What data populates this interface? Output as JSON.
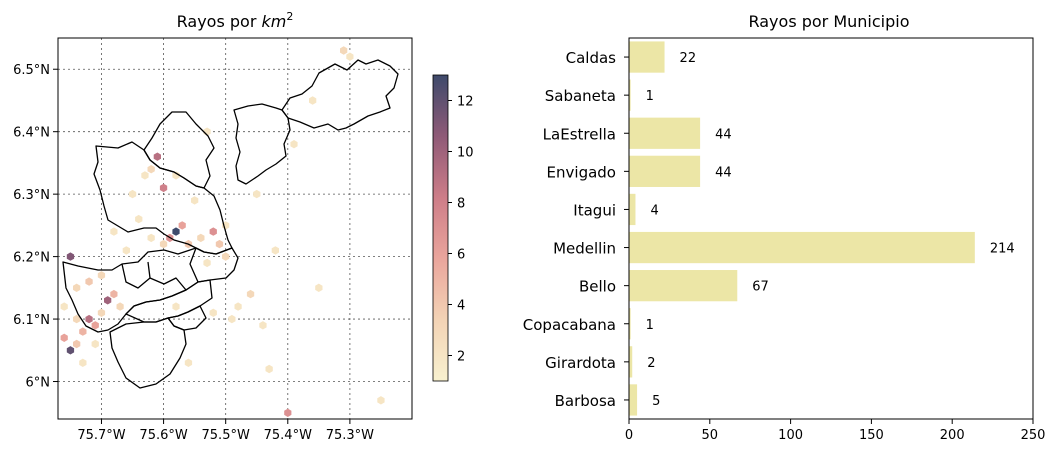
{
  "colors": {
    "bar": "#ece6a6",
    "cmap": [
      "#f8f1cf",
      "#f3d3b5",
      "#eaa59c",
      "#cd7d88",
      "#8f5a77",
      "#3e4a6b"
    ],
    "grid": "#555555",
    "border": "#000000"
  },
  "chart_data": [
    {
      "type": "heatmap",
      "title": "Rayos por km²",
      "title_prefix": "Rayos por ",
      "title_var": "km",
      "title_sup": "2",
      "x_ticks": [
        "75.7°W",
        "75.6°W",
        "75.5°W",
        "75.4°W",
        "75.3°W"
      ],
      "y_ticks": [
        "6.5°N",
        "6.4°N",
        "6.3°N",
        "6.2°N",
        "6.1°N",
        "6°N"
      ],
      "xlim": [
        -75.77,
        -75.2
      ],
      "ylim": [
        5.94,
        6.55
      ],
      "grid": true,
      "colorbar": {
        "ticks": [
          "2",
          "4",
          "6",
          "8",
          "10",
          "12"
        ],
        "range": [
          1,
          13
        ]
      },
      "cells": [
        {
          "lon": -75.76,
          "lat": 6.07,
          "v": 6
        },
        {
          "lon": -75.75,
          "lat": 6.05,
          "v": 12
        },
        {
          "lon": -75.74,
          "lat": 6.06,
          "v": 4
        },
        {
          "lon": -75.73,
          "lat": 6.08,
          "v": 5
        },
        {
          "lon": -75.72,
          "lat": 6.1,
          "v": 9
        },
        {
          "lon": -75.71,
          "lat": 6.09,
          "v": 6
        },
        {
          "lon": -75.7,
          "lat": 6.11,
          "v": 3
        },
        {
          "lon": -75.69,
          "lat": 6.13,
          "v": 10
        },
        {
          "lon": -75.68,
          "lat": 6.14,
          "v": 5
        },
        {
          "lon": -75.67,
          "lat": 6.12,
          "v": 3
        },
        {
          "lon": -75.74,
          "lat": 6.15,
          "v": 3
        },
        {
          "lon": -75.72,
          "lat": 6.16,
          "v": 4
        },
        {
          "lon": -75.7,
          "lat": 6.17,
          "v": 3
        },
        {
          "lon": -75.76,
          "lat": 6.12,
          "v": 2
        },
        {
          "lon": -75.75,
          "lat": 6.2,
          "v": 11
        },
        {
          "lon": -75.73,
          "lat": 6.03,
          "v": 2
        },
        {
          "lon": -75.71,
          "lat": 6.06,
          "v": 2
        },
        {
          "lon": -75.74,
          "lat": 6.1,
          "v": 3
        },
        {
          "lon": -75.58,
          "lat": 6.24,
          "v": 13
        },
        {
          "lon": -75.59,
          "lat": 6.23,
          "v": 7
        },
        {
          "lon": -75.57,
          "lat": 6.25,
          "v": 6
        },
        {
          "lon": -75.56,
          "lat": 6.22,
          "v": 4
        },
        {
          "lon": -75.6,
          "lat": 6.22,
          "v": 3
        },
        {
          "lon": -75.62,
          "lat": 6.23,
          "v": 2
        },
        {
          "lon": -75.54,
          "lat": 6.23,
          "v": 3
        },
        {
          "lon": -75.52,
          "lat": 6.24,
          "v": 7
        },
        {
          "lon": -75.51,
          "lat": 6.22,
          "v": 4
        },
        {
          "lon": -75.5,
          "lat": 6.2,
          "v": 3
        },
        {
          "lon": -75.53,
          "lat": 6.19,
          "v": 2
        },
        {
          "lon": -75.5,
          "lat": 6.25,
          "v": 2
        },
        {
          "lon": -75.61,
          "lat": 6.36,
          "v": 9
        },
        {
          "lon": -75.62,
          "lat": 6.34,
          "v": 3
        },
        {
          "lon": -75.6,
          "lat": 6.31,
          "v": 8
        },
        {
          "lon": -75.63,
          "lat": 6.33,
          "v": 2
        },
        {
          "lon": -75.58,
          "lat": 6.33,
          "v": 2
        },
        {
          "lon": -75.65,
          "lat": 6.3,
          "v": 2
        },
        {
          "lon": -75.55,
          "lat": 6.29,
          "v": 2
        },
        {
          "lon": -75.66,
          "lat": 6.21,
          "v": 2
        },
        {
          "lon": -75.68,
          "lat": 6.24,
          "v": 2
        },
        {
          "lon": -75.64,
          "lat": 6.26,
          "v": 2
        },
        {
          "lon": -75.46,
          "lat": 6.14,
          "v": 3
        },
        {
          "lon": -75.48,
          "lat": 6.12,
          "v": 2
        },
        {
          "lon": -75.49,
          "lat": 6.1,
          "v": 2
        },
        {
          "lon": -75.52,
          "lat": 6.11,
          "v": 2
        },
        {
          "lon": -75.44,
          "lat": 6.09,
          "v": 2
        },
        {
          "lon": -75.4,
          "lat": 5.95,
          "v": 7
        },
        {
          "lon": -75.31,
          "lat": 6.53,
          "v": 3
        },
        {
          "lon": -75.3,
          "lat": 6.52,
          "v": 2
        },
        {
          "lon": -75.43,
          "lat": 6.02,
          "v": 2
        },
        {
          "lon": -75.25,
          "lat": 5.97,
          "v": 2
        },
        {
          "lon": -75.35,
          "lat": 6.15,
          "v": 2
        },
        {
          "lon": -75.36,
          "lat": 6.45,
          "v": 2
        },
        {
          "lon": -75.39,
          "lat": 6.38,
          "v": 2
        },
        {
          "lon": -75.53,
          "lat": 6.4,
          "v": 2
        },
        {
          "lon": -75.56,
          "lat": 6.03,
          "v": 2
        },
        {
          "lon": -75.58,
          "lat": 6.12,
          "v": 2
        },
        {
          "lon": -75.45,
          "lat": 6.3,
          "v": 2
        },
        {
          "lon": -75.42,
          "lat": 6.21,
          "v": 2
        }
      ]
    },
    {
      "type": "bar",
      "orientation": "horizontal",
      "title": "Rayos por Municipio",
      "categories": [
        "Caldas",
        "Sabaneta",
        "LaEstrella",
        "Envigado",
        "Itagui",
        "Medellin",
        "Bello",
        "Copacabana",
        "Girardota",
        "Barbosa"
      ],
      "values": [
        22,
        1,
        44,
        44,
        4,
        214,
        67,
        1,
        2,
        5
      ],
      "value_labels": [
        "22",
        "1",
        "44",
        "44",
        "4",
        "214",
        "67",
        "1",
        "2",
        "5"
      ],
      "xlim": [
        0,
        250
      ],
      "x_ticks": [
        "0",
        "50",
        "100",
        "150",
        "200",
        "250"
      ],
      "grid": false
    }
  ]
}
